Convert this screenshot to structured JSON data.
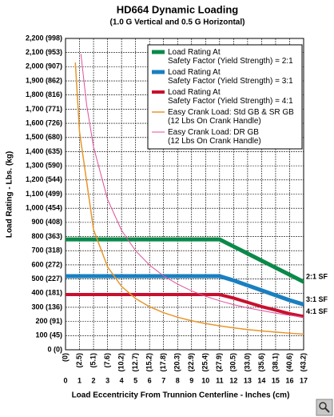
{
  "chart_data": {
    "type": "line",
    "title": "HD664 Dynamic Loading",
    "subtitle": "(1.0 G Vertical and 0.5 G Horizontal)",
    "y_label": "Load Rating - Lbs. (kg)",
    "x_label": "Load Eccentricity From Trunnion Centerline - Inches (cm)",
    "xlim": [
      0,
      17
    ],
    "ylim": [
      0,
      2200
    ],
    "grid": true,
    "legend_position": "top-right",
    "xticks": [
      0,
      1,
      2,
      3,
      4,
      5,
      6,
      7,
      8,
      9,
      10,
      11,
      12,
      13,
      14,
      15,
      16,
      17
    ],
    "xtick_cm_labels": [
      "(0)",
      "(2.5)",
      "(5.1)",
      "(7.6)",
      "(10.2)",
      "(12.7)",
      "(15.2)",
      "(17.8)",
      "(20.3)",
      "(22.9)",
      "(25.4)",
      "(27.9)",
      "(30.5)",
      "(33.0)",
      "(35.6)",
      "(38.1)",
      "(40.6)",
      "(43.2)"
    ],
    "yticks": [
      {
        "value": 0,
        "label": "0 (0)"
      },
      {
        "value": 100,
        "label": "100 (45)"
      },
      {
        "value": 200,
        "label": "200 (91)"
      },
      {
        "value": 300,
        "label": "300 (136)"
      },
      {
        "value": 400,
        "label": "400 (181)"
      },
      {
        "value": 500,
        "label": "500 (227)"
      },
      {
        "value": 600,
        "label": "600 (272)"
      },
      {
        "value": 700,
        "label": "700 (318)"
      },
      {
        "value": 800,
        "label": "800 (363)"
      },
      {
        "value": 900,
        "label": "900 (408)"
      },
      {
        "value": 1000,
        "label": "1,000 (454)"
      },
      {
        "value": 1100,
        "label": "1,100 (499)"
      },
      {
        "value": 1200,
        "label": "1,200 (544)"
      },
      {
        "value": 1300,
        "label": "1,300 (590)"
      },
      {
        "value": 1400,
        "label": "1,400 (635)"
      },
      {
        "value": 1500,
        "label": "1,500 (680)"
      },
      {
        "value": 1600,
        "label": "1,600 (726)"
      },
      {
        "value": 1700,
        "label": "1,700 (771)"
      },
      {
        "value": 1800,
        "label": "1,800 (816)"
      },
      {
        "value": 1900,
        "label": "1,900 (862)"
      },
      {
        "value": 2000,
        "label": "2,000 (907)"
      },
      {
        "value": 2100,
        "label": "2,100 (953)"
      },
      {
        "value": 2200,
        "label": "2,200 (998)"
      }
    ],
    "series": [
      {
        "name": "Load Rating At\nSafety Factor (Yield Strength) = 2:1",
        "color": "#0a8a4a",
        "width": 5,
        "end_label": "2:1 SF",
        "x": [
          0,
          1,
          2,
          3,
          4,
          5,
          6,
          7,
          8,
          9,
          10,
          11,
          12,
          13,
          14,
          15,
          16,
          17
        ],
        "values": [
          780,
          780,
          780,
          780,
          780,
          780,
          780,
          780,
          780,
          780,
          780,
          780,
          730,
          680,
          630,
          580,
          530,
          480
        ]
      },
      {
        "name": "Load Rating At\nSafety Factor (Yield Strength) = 3:1",
        "color": "#1a7fc0",
        "width": 5,
        "end_label": "3:1 SF",
        "x": [
          0,
          1,
          2,
          3,
          4,
          5,
          6,
          7,
          8,
          9,
          10,
          11,
          12,
          13,
          14,
          15,
          16,
          17
        ],
        "values": [
          520,
          520,
          520,
          520,
          520,
          520,
          520,
          520,
          520,
          520,
          520,
          520,
          490,
          455,
          420,
          385,
          350,
          320
        ]
      },
      {
        "name": "Load Rating At\nSafety Factor (Yield Strength) = 4:1",
        "color": "#c8102e",
        "width": 4,
        "end_label": "4:1 SF",
        "x": [
          0,
          1,
          2,
          3,
          4,
          5,
          6,
          7,
          8,
          9,
          10,
          11,
          12,
          13,
          14,
          15,
          16,
          17
        ],
        "values": [
          390,
          390,
          390,
          390,
          390,
          390,
          390,
          390,
          390,
          390,
          390,
          390,
          365,
          335,
          305,
          280,
          255,
          235
        ]
      },
      {
        "name": "Easy Crank Load: Std GB & SR GB\n(12 Lbs On Crank Handle)",
        "color": "#e8962a",
        "width": 1.5,
        "x": [
          0.7,
          1,
          2,
          3,
          4,
          5,
          6,
          7,
          8,
          9,
          10,
          11,
          12,
          13,
          14,
          15,
          16,
          17
        ],
        "values": [
          2030,
          1540,
          850,
          586,
          448,
          362,
          304,
          262,
          230,
          205,
          185,
          169,
          155,
          143,
          133,
          125,
          117,
          110
        ]
      },
      {
        "name": "Easy Crank Load: DR GB\n(12 Lbs On Crank Handle)",
        "color": "#e0509a",
        "width": 1,
        "x": [
          1.1,
          1.5,
          2,
          3,
          4,
          5,
          6,
          7,
          8,
          9,
          10,
          11,
          12,
          13,
          14,
          15,
          16,
          17
        ],
        "values": [
          2090,
          1736,
          1433,
          1063,
          844,
          700,
          598,
          522,
          464,
          416,
          378,
          346,
          319,
          296,
          277,
          259,
          244,
          230
        ]
      }
    ]
  }
}
